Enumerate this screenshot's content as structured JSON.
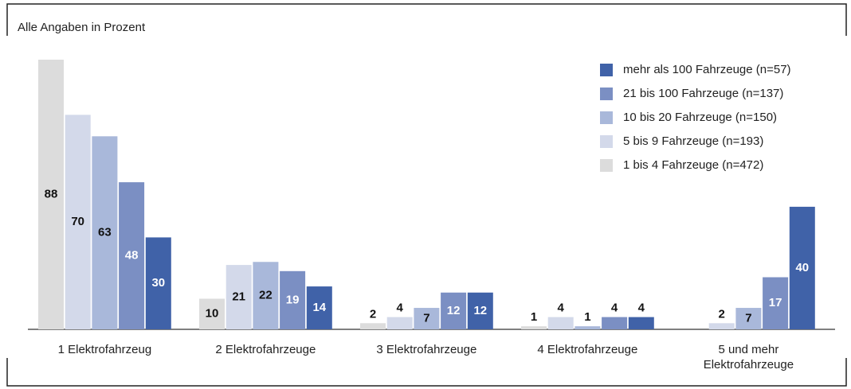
{
  "chart_data": {
    "type": "bar",
    "subtitle": "Alle Angaben in Prozent",
    "categories": [
      "1 Elektrofahrzeug",
      "2 Elektrofahrzeuge",
      "3 Elektrofahrzeuge",
      "4 Elektrofahrzeuge",
      "5 und mehr Elektrofahrzeuge"
    ],
    "series": [
      {
        "name": "1 bis 4 Fahrzeuge (n=472)",
        "color": "#dcdcdc",
        "values": [
          88,
          10,
          2,
          1,
          null
        ]
      },
      {
        "name": "5 bis 9 Fahrzeuge (n=193)",
        "color": "#d3d9ea",
        "values": [
          70,
          21,
          4,
          4,
          2
        ]
      },
      {
        "name": "10 bis 20 Fahrzeuge (n=150)",
        "color": "#a9b8da",
        "values": [
          63,
          22,
          7,
          1,
          7
        ]
      },
      {
        "name": "21 bis 100 Fahrzeuge (n=137)",
        "color": "#7b8fc3",
        "values": [
          48,
          19,
          12,
          4,
          17
        ]
      },
      {
        "name": "mehr als 100 Fahrzeuge (n=57)",
        "color": "#4062a8",
        "values": [
          30,
          14,
          12,
          4,
          40
        ]
      }
    ],
    "legend": "top-right"
  }
}
